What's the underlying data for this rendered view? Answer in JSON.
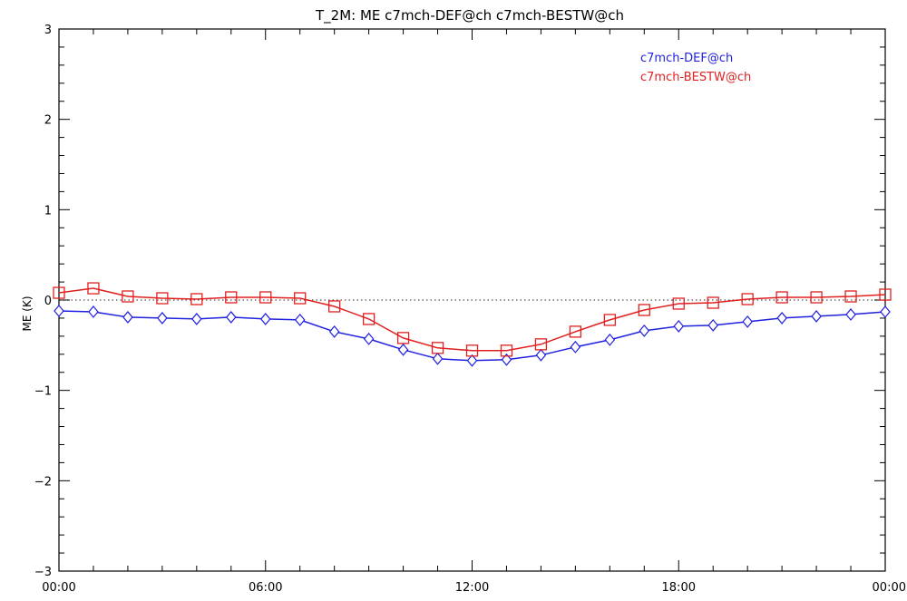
{
  "chart_data": {
    "type": "line",
    "title": "T_2M: ME c7mch-DEF@ch c7mch-BESTW@ch",
    "xlabel": "",
    "ylabel": "ME (K)",
    "x": [
      0,
      1,
      2,
      3,
      4,
      5,
      6,
      7,
      8,
      9,
      10,
      11,
      12,
      13,
      14,
      15,
      16,
      17,
      18,
      19,
      20,
      21,
      22,
      23,
      24
    ],
    "x_tick_values": [
      0,
      6,
      12,
      18,
      24
    ],
    "x_tick_labels": [
      "00:00",
      "06:00",
      "12:00",
      "18:00",
      "00:00"
    ],
    "y_tick_values": [
      -3,
      -2,
      -1,
      0,
      1,
      2,
      3
    ],
    "y_tick_labels": [
      "−3",
      "−2",
      "−1",
      "0",
      "1",
      "2",
      "3"
    ],
    "xlim": [
      0,
      24
    ],
    "ylim": [
      -3,
      3
    ],
    "reference_line": 0,
    "legend_position": "top-right",
    "series": [
      {
        "name": "c7mch-DEF@ch",
        "color": "#2020e0",
        "marker": "diamond",
        "values": [
          -0.12,
          -0.13,
          -0.19,
          -0.2,
          -0.21,
          -0.19,
          -0.21,
          -0.22,
          -0.35,
          -0.43,
          -0.55,
          -0.65,
          -0.67,
          -0.66,
          -0.61,
          -0.52,
          -0.44,
          -0.34,
          -0.29,
          -0.28,
          -0.24,
          -0.2,
          -0.18,
          -0.16,
          -0.13
        ]
      },
      {
        "name": "c7mch-BESTW@ch",
        "color": "#e02020",
        "marker": "square",
        "values": [
          0.08,
          0.13,
          0.04,
          0.02,
          0.01,
          0.03,
          0.03,
          0.02,
          -0.07,
          -0.21,
          -0.42,
          -0.53,
          -0.56,
          -0.56,
          -0.49,
          -0.35,
          -0.22,
          -0.11,
          -0.04,
          -0.03,
          0.01,
          0.03,
          0.03,
          0.04,
          0.06
        ]
      }
    ]
  }
}
